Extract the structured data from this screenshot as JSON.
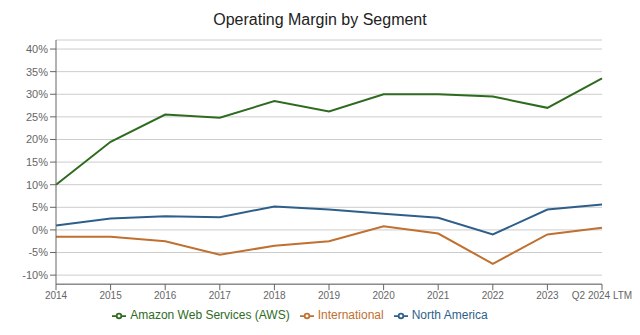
{
  "chart_data": {
    "type": "line",
    "title": "Operating Margin by Segment",
    "categories": [
      "2014",
      "2015",
      "2016",
      "2017",
      "2018",
      "2019",
      "2020",
      "2021",
      "2022",
      "2023",
      "Q2 2024 LTM"
    ],
    "series": [
      {
        "name": "North America",
        "color": "#2E5F8A",
        "values": [
          1.0,
          2.5,
          3.0,
          2.8,
          5.2,
          4.5,
          3.6,
          2.7,
          -1.0,
          4.5,
          5.6
        ]
      },
      {
        "name": "International",
        "color": "#C07030",
        "values": [
          -1.5,
          -1.5,
          -2.5,
          -5.5,
          -3.5,
          -2.5,
          0.8,
          -0.8,
          -7.5,
          -1.0,
          0.5
        ]
      },
      {
        "name": "Amazon Web Services (AWS)",
        "color": "#2E6B1F",
        "values": [
          10.0,
          19.5,
          25.5,
          24.8,
          28.5,
          26.2,
          30.0,
          30.0,
          29.5,
          27.0,
          33.5
        ]
      }
    ],
    "ylim": [
      -12,
      42
    ],
    "yticks": [
      {
        "value": -10,
        "label": "-10%"
      },
      {
        "value": -5,
        "label": "-5%"
      },
      {
        "value": 0,
        "label": "0%"
      },
      {
        "value": 5,
        "label": "5%"
      },
      {
        "value": 10,
        "label": "10%"
      },
      {
        "value": 15,
        "label": "15%"
      },
      {
        "value": 20,
        "label": "20%"
      },
      {
        "value": 25,
        "label": "25%"
      },
      {
        "value": 30,
        "label": "30%"
      },
      {
        "value": 35,
        "label": "35%"
      },
      {
        "value": 40,
        "label": "40%"
      }
    ],
    "grid": true,
    "legend": "bottom"
  }
}
